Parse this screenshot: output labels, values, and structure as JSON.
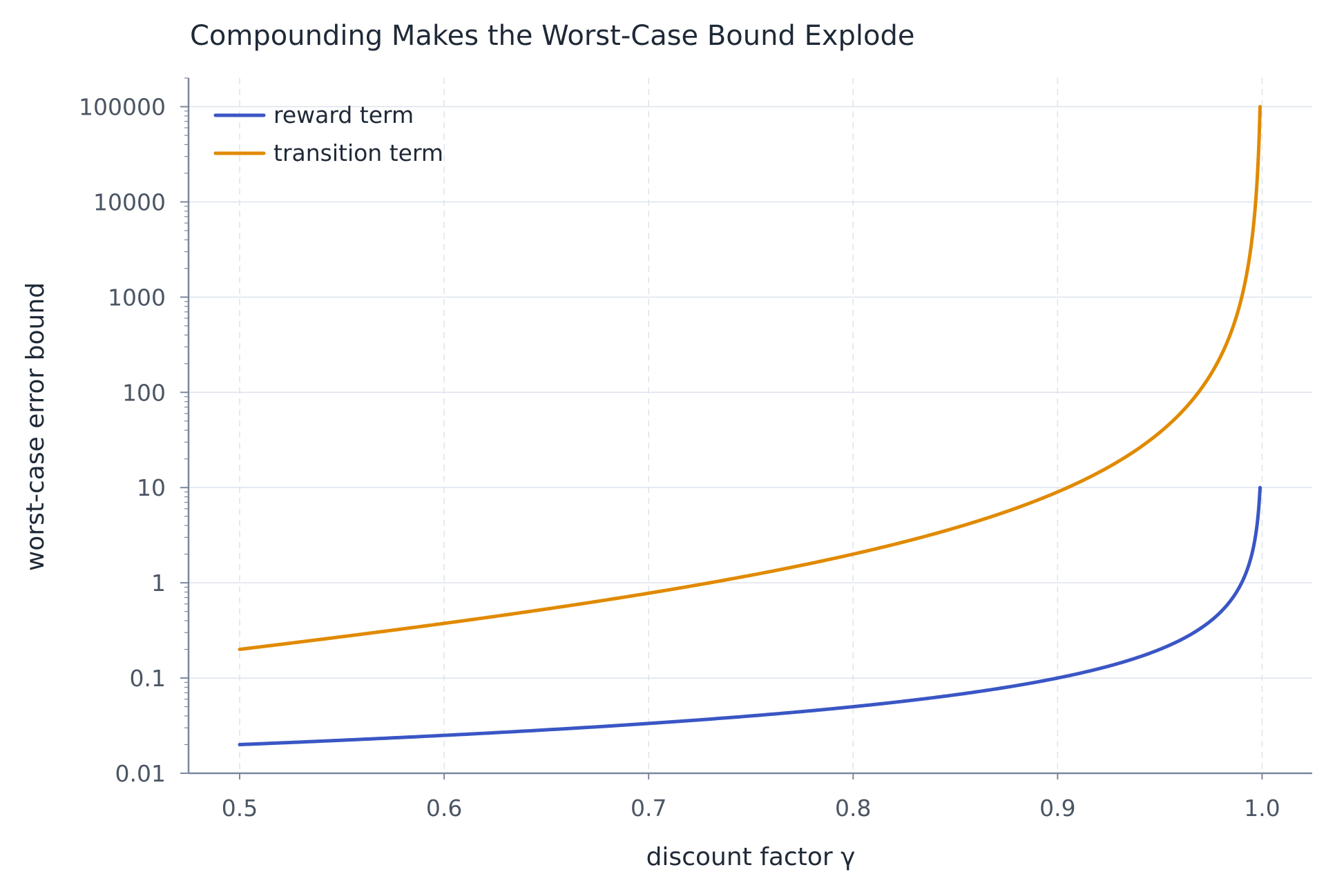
{
  "chart_data": {
    "type": "line",
    "title": "Compounding Makes the Worst-Case Bound Explode",
    "xlabel": "discount factor γ",
    "ylabel": "worst-case error bound",
    "xlim": [
      0.475,
      1.0245
    ],
    "ylim": [
      0.01,
      200000
    ],
    "yscale": "log",
    "grid": true,
    "legend_position": "top-left",
    "x_ticks": [
      "0.5",
      "0.6",
      "0.7",
      "0.8",
      "0.9",
      "1.0"
    ],
    "y_ticks": [
      "0.01",
      "0.1",
      "1",
      "10",
      "100",
      "1000",
      "10000",
      "100000"
    ],
    "series": [
      {
        "name": "reward term",
        "color": "#3a56c5",
        "formula": "0.01 / (1 - gamma)",
        "x": [
          0.5,
          0.55,
          0.6,
          0.65,
          0.7,
          0.75,
          0.8,
          0.85,
          0.9,
          0.925,
          0.95,
          0.96,
          0.97,
          0.975,
          0.98,
          0.985,
          0.99,
          0.993,
          0.995,
          0.997,
          0.998,
          0.999
        ],
        "y": [
          0.02,
          0.0222,
          0.025,
          0.0286,
          0.0333,
          0.04,
          0.05,
          0.0667,
          0.1,
          0.1333,
          0.2,
          0.25,
          0.3333,
          0.4,
          0.5,
          0.6667,
          1,
          1.4286,
          2,
          3.3333,
          5,
          10
        ]
      },
      {
        "name": "transition term",
        "color": "#e08a00",
        "formula": "0.1 * gamma / (1 - gamma)^2",
        "x": [
          0.5,
          0.55,
          0.6,
          0.65,
          0.7,
          0.75,
          0.8,
          0.85,
          0.9,
          0.925,
          0.95,
          0.96,
          0.97,
          0.975,
          0.98,
          0.985,
          0.99,
          0.993,
          0.995,
          0.997,
          0.998,
          0.999
        ],
        "y": [
          0.2,
          0.2716,
          0.375,
          0.5306,
          0.7778,
          1.2,
          2,
          3.7778,
          9,
          16.444,
          38,
          60,
          107.78,
          156,
          245,
          437.78,
          990,
          2026.5,
          3980,
          11078,
          24950,
          99900
        ]
      }
    ]
  }
}
